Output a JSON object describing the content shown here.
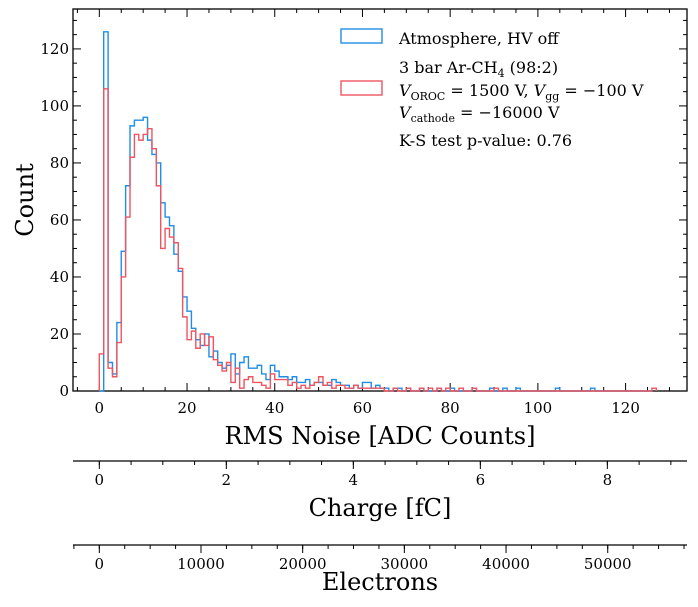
{
  "chart_data": {
    "type": "histogram",
    "title": "",
    "xlabel": "RMS Noise [ADC Counts]",
    "ylabel": "Count",
    "xlim": [
      -6,
      134
    ],
    "ylim": [
      0,
      134
    ],
    "xticks": [
      0,
      20,
      40,
      60,
      80,
      100,
      120
    ],
    "yticks": [
      0,
      20,
      40,
      60,
      80,
      100,
      120
    ],
    "bin_start": 0,
    "bin_width": 1,
    "series": [
      {
        "name": "Atmosphere, HV off",
        "color": "#1f8ee6",
        "values": [
          0,
          126,
          10,
          6,
          24,
          49,
          72,
          93,
          95,
          95,
          96,
          88,
          83,
          80,
          66,
          61,
          58,
          48,
          42,
          33,
          28,
          22,
          18,
          16,
          20,
          12,
          14,
          10,
          8,
          9,
          13,
          6,
          10,
          12,
          8,
          8,
          9,
          6,
          4,
          9,
          7,
          5,
          5,
          4,
          5,
          3,
          3,
          4,
          2,
          3,
          3,
          2,
          2,
          4,
          3,
          2,
          2,
          1,
          2,
          1,
          3,
          3,
          1,
          2,
          1,
          1,
          0,
          1,
          1,
          0,
          1,
          0,
          0,
          1,
          0,
          0,
          0,
          1,
          0,
          0,
          1,
          0,
          0,
          0,
          0,
          1,
          0,
          0,
          0,
          1,
          0,
          0,
          1,
          0,
          0,
          1,
          0,
          0,
          0,
          0,
          0,
          0,
          0,
          0,
          1,
          0,
          0,
          0,
          0,
          0,
          0,
          0,
          1,
          0,
          0,
          0,
          0,
          0,
          0,
          0,
          0,
          0,
          0,
          0,
          0,
          0
        ]
      },
      {
        "name": "3 bar Ar-CH4 (98:2), V_OROC = 1500 V, V_gg = -100 V, V_cathode = -16000 V",
        "color": "#ee5560",
        "values": [
          13,
          106,
          8,
          5,
          17,
          40,
          61,
          82,
          90,
          88,
          90,
          92,
          85,
          72,
          50,
          57,
          54,
          52,
          43,
          26,
          18,
          21,
          15,
          20,
          16,
          19,
          11,
          9,
          7,
          10,
          3,
          8,
          1,
          4,
          5,
          3,
          3,
          2,
          1,
          6,
          4,
          4,
          4,
          2,
          3,
          1,
          2,
          1,
          2,
          3,
          5,
          2,
          3,
          1,
          2,
          2,
          1,
          1,
          2,
          1,
          1,
          1,
          1,
          1,
          1,
          0,
          0,
          1,
          0,
          0,
          1,
          0,
          0,
          1,
          0,
          1,
          0,
          1,
          0,
          1,
          0,
          0,
          1,
          0,
          0,
          1,
          0,
          0,
          0,
          0,
          1,
          0,
          0,
          0,
          0,
          0,
          0,
          0,
          0,
          0,
          0,
          0,
          0,
          0,
          0,
          0,
          0,
          0,
          0,
          0,
          0,
          0,
          0,
          0,
          0,
          0,
          0,
          0,
          0,
          0,
          0,
          0,
          0,
          0,
          0,
          0,
          1
        ]
      }
    ],
    "legend": {
      "placement": "top-right",
      "entry1": "Atmosphere, HV off",
      "entry2_line1": "3 bar Ar-CH",
      "entry2_line1_sub": "4",
      "entry2_line1_tail": " (98:2)",
      "entry2_line2_v": "V",
      "entry2_line2_oroc_sub": "OROC",
      "entry2_line2_mid": " = 1500 V, ",
      "entry2_line2_v2": "V",
      "entry2_line2_gg_sub": "gg",
      "entry2_line2_tail": " = −100 V",
      "entry2_line3_v": "V",
      "entry2_line3_sub": "cathode",
      "entry2_line3_tail": " = −16000 V",
      "ks_text": "K-S test p-value: 0.76"
    },
    "secondary_axes": [
      {
        "label": "Charge [fC]",
        "adc_per_unit": 14.48,
        "ticks": [
          0,
          2,
          4,
          6,
          8
        ],
        "tick_labels": [
          "0",
          "2",
          "4",
          "6",
          "8"
        ],
        "minor_step": 0.5
      },
      {
        "label": "Electrons",
        "adc_per_unit": 0.0023185,
        "ticks": [
          0,
          10000,
          20000,
          30000,
          40000,
          50000
        ],
        "tick_labels": [
          "0",
          "10000",
          "20000",
          "30000",
          "40000",
          "50000"
        ],
        "minor_step": 2500
      }
    ]
  }
}
